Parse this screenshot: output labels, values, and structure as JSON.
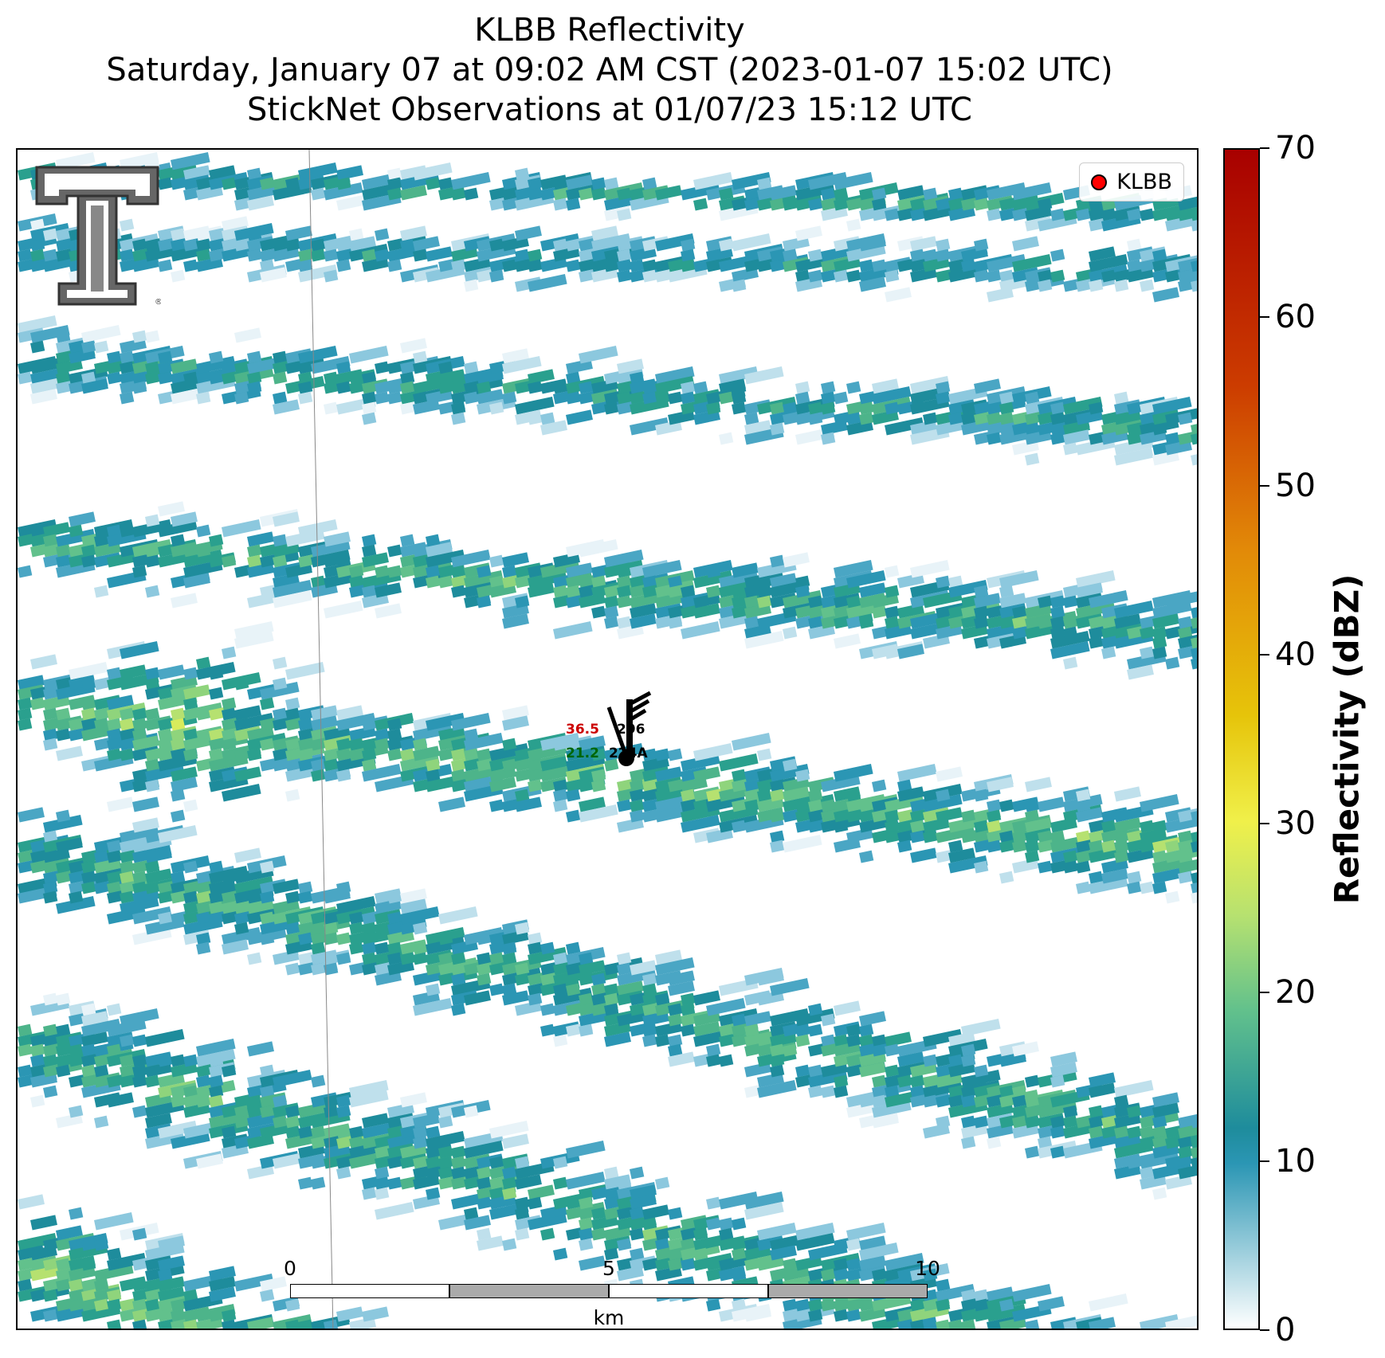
{
  "title": {
    "line1": "KLBB Reflectivity",
    "line2": "Saturday, January 07 at 09:02 AM CST (2023-01-07 15:02 UTC)",
    "line3": "StickNet Observations at 01/07/23 15:12 UTC"
  },
  "legend": {
    "label": "KLBB",
    "marker_color": "#ff0000"
  },
  "logo": {
    "icon": "texas-tech-double-t-logo"
  },
  "station": {
    "id": "296",
    "temperature": "36.5",
    "dewpoint": "21.2",
    "direction": "224A",
    "temperature_color": "#cc0000",
    "dewpoint_color": "#006600",
    "icon": "wind-barb-icon"
  },
  "scalebar": {
    "ticks": [
      "0",
      "5",
      "10"
    ],
    "unit": "km"
  },
  "colorbar": {
    "label": "Reflectivity (dBZ)",
    "ticks": [
      "0",
      "10",
      "20",
      "30",
      "40",
      "50",
      "60",
      "70"
    ],
    "range": [
      0,
      70
    ]
  },
  "colors": {
    "low": "#ffffff",
    "teal": "#1e8c9c",
    "green": "#62c18c",
    "yellow": "#f0f04a",
    "red": "#a80000"
  }
}
